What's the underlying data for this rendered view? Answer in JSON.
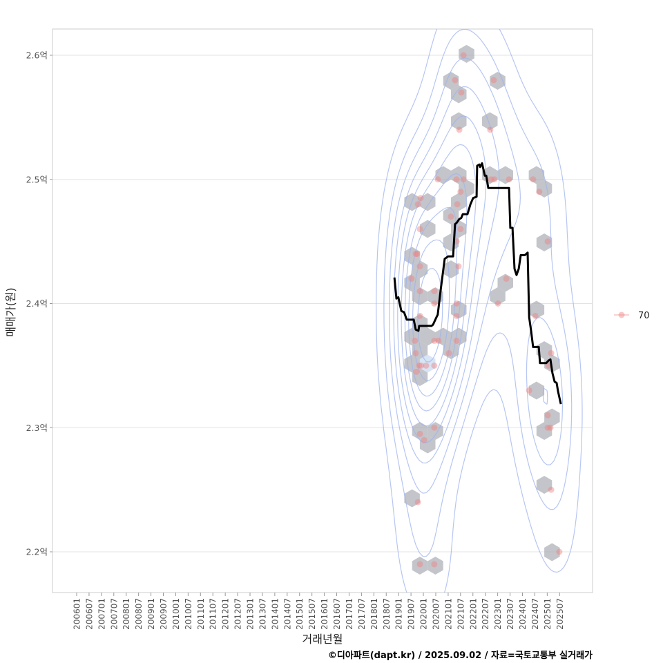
{
  "chart_data": {
    "type": "scatter",
    "xlabel": "거래년월",
    "ylabel": "매매가(원)",
    "x_unit": "decimal year",
    "y_unit": "억",
    "ylim": [
      2.17,
      2.62
    ],
    "xlim": [
      2004.98,
      2026.8
    ],
    "grid": true,
    "y_ticks": [
      {
        "value": 2.2,
        "label": "2.2억"
      },
      {
        "value": 2.3,
        "label": "2.3억"
      },
      {
        "value": 2.4,
        "label": "2.4억"
      },
      {
        "value": 2.5,
        "label": "2.5억"
      },
      {
        "value": 2.6,
        "label": "2.6억"
      }
    ],
    "x_ticks": [
      "200601",
      "200607",
      "200701",
      "200707",
      "200801",
      "200807",
      "200901",
      "200907",
      "201001",
      "201007",
      "201101",
      "201107",
      "201201",
      "201207",
      "201301",
      "201307",
      "201401",
      "201407",
      "201501",
      "201507",
      "201601",
      "201607",
      "201701",
      "201707",
      "201801",
      "201807",
      "201901",
      "201907",
      "202001",
      "202007",
      "202101",
      "202107",
      "202201",
      "202207",
      "202301",
      "202307",
      "202401",
      "202407",
      "202501",
      "202507"
    ],
    "legend": {
      "position": "right",
      "entries": [
        {
          "label": "70",
          "color": "#f4a6a6"
        }
      ]
    },
    "series": [
      {
        "name": "70",
        "kind": "points",
        "color": "#f08080",
        "points": [
          [
            2021.62,
            2.6
          ],
          [
            2021.28,
            2.58
          ],
          [
            2022.84,
            2.58
          ],
          [
            2021.53,
            2.57
          ],
          [
            2021.45,
            2.54
          ],
          [
            2022.7,
            2.54
          ],
          [
            2020.58,
            2.5
          ],
          [
            2021.34,
            2.5
          ],
          [
            2021.62,
            2.5
          ],
          [
            2022.73,
            2.5
          ],
          [
            2022.87,
            2.5
          ],
          [
            2023.46,
            2.5
          ],
          [
            2024.43,
            2.5
          ],
          [
            2024.68,
            2.49
          ],
          [
            2021.5,
            2.49
          ],
          [
            2019.89,
            2.485
          ],
          [
            2019.78,
            2.48
          ],
          [
            2021.37,
            2.48
          ],
          [
            2021.11,
            2.47
          ],
          [
            2019.86,
            2.46
          ],
          [
            2021.5,
            2.46
          ],
          [
            2021.34,
            2.45
          ],
          [
            2025.02,
            2.45
          ],
          [
            2019.69,
            2.44
          ],
          [
            2019.75,
            2.44
          ],
          [
            2019.86,
            2.43
          ],
          [
            2021.42,
            2.43
          ],
          [
            2023.35,
            2.42
          ],
          [
            2019.52,
            2.42
          ],
          [
            2019.86,
            2.41
          ],
          [
            2020.44,
            2.41
          ],
          [
            2020.44,
            2.4
          ],
          [
            2021.34,
            2.4
          ],
          [
            2023.01,
            2.4
          ],
          [
            2019.86,
            2.39
          ],
          [
            2021.34,
            2.39
          ],
          [
            2024.52,
            2.39
          ],
          [
            2019.66,
            2.37
          ],
          [
            2020.44,
            2.37
          ],
          [
            2020.61,
            2.37
          ],
          [
            2021.34,
            2.37
          ],
          [
            2019.69,
            2.36
          ],
          [
            2021.03,
            2.36
          ],
          [
            2025.16,
            2.36
          ],
          [
            2019.83,
            2.35
          ],
          [
            2019.91,
            2.35
          ],
          [
            2020.11,
            2.35
          ],
          [
            2020.44,
            2.35
          ],
          [
            2025.05,
            2.35
          ],
          [
            2019.72,
            2.345
          ],
          [
            2024.27,
            2.33
          ],
          [
            2025.02,
            2.31
          ],
          [
            2025.02,
            2.3
          ],
          [
            2025.13,
            2.3
          ],
          [
            2020.44,
            2.3
          ],
          [
            2019.86,
            2.295
          ],
          [
            2020.03,
            2.29
          ],
          [
            2025.16,
            2.25
          ],
          [
            2019.78,
            2.24
          ],
          [
            2025.49,
            2.2
          ],
          [
            2019.86,
            2.19
          ],
          [
            2020.44,
            2.19
          ]
        ]
      },
      {
        "name": "rolling-median",
        "kind": "line",
        "color": "#000000",
        "points": [
          [
            2018.83,
            2.421
          ],
          [
            2018.91,
            2.404
          ],
          [
            2018.99,
            2.405
          ],
          [
            2019.11,
            2.394
          ],
          [
            2019.22,
            2.393
          ],
          [
            2019.33,
            2.387
          ],
          [
            2019.61,
            2.387
          ],
          [
            2019.69,
            2.379
          ],
          [
            2019.8,
            2.378
          ],
          [
            2019.83,
            2.382
          ],
          [
            2020.33,
            2.382
          ],
          [
            2020.39,
            2.383
          ],
          [
            2020.53,
            2.389
          ],
          [
            2020.58,
            2.391
          ],
          [
            2020.7,
            2.411
          ],
          [
            2020.86,
            2.436
          ],
          [
            2021.0,
            2.438
          ],
          [
            2021.2,
            2.438
          ],
          [
            2021.28,
            2.464
          ],
          [
            2021.34,
            2.465
          ],
          [
            2021.45,
            2.468
          ],
          [
            2021.53,
            2.469
          ],
          [
            2021.59,
            2.472
          ],
          [
            2021.78,
            2.472
          ],
          [
            2021.9,
            2.48
          ],
          [
            2022.01,
            2.485
          ],
          [
            2022.15,
            2.486
          ],
          [
            2022.17,
            2.511
          ],
          [
            2022.26,
            2.512
          ],
          [
            2022.29,
            2.51
          ],
          [
            2022.37,
            2.513
          ],
          [
            2022.48,
            2.503
          ],
          [
            2022.54,
            2.503
          ],
          [
            2022.62,
            2.493
          ],
          [
            2023.46,
            2.493
          ],
          [
            2023.51,
            2.461
          ],
          [
            2023.6,
            2.461
          ],
          [
            2023.68,
            2.428
          ],
          [
            2023.76,
            2.423
          ],
          [
            2023.85,
            2.428
          ],
          [
            2023.93,
            2.439
          ],
          [
            2024.1,
            2.439
          ],
          [
            2024.21,
            2.441
          ],
          [
            2024.27,
            2.389
          ],
          [
            2024.35,
            2.378
          ],
          [
            2024.43,
            2.365
          ],
          [
            2024.66,
            2.365
          ],
          [
            2024.71,
            2.352
          ],
          [
            2024.96,
            2.352
          ],
          [
            2025.05,
            2.354
          ],
          [
            2025.13,
            2.355
          ],
          [
            2025.21,
            2.344
          ],
          [
            2025.3,
            2.337
          ],
          [
            2025.38,
            2.336
          ],
          [
            2025.44,
            2.329
          ],
          [
            2025.55,
            2.319
          ]
        ]
      }
    ],
    "overlays": [
      "hexbin",
      "density-contours"
    ]
  },
  "footer": "©디아파트(dapt.kr) / 2025.09.02 / 자료=국토교통부 실거래가"
}
